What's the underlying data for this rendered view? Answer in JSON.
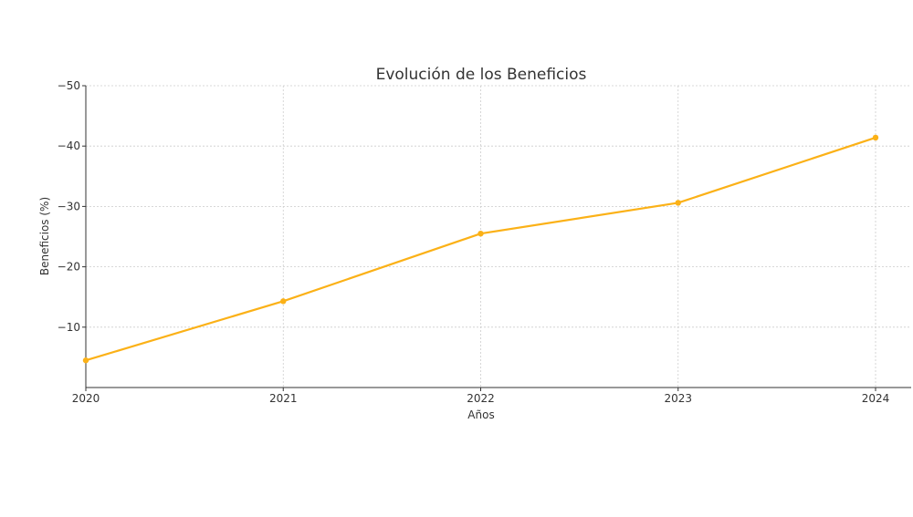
{
  "chart_data": {
    "type": "line",
    "title": "Evolución de los Beneficios",
    "xlabel": "Años",
    "ylabel": "Beneficios (%)",
    "x": [
      2020,
      2021,
      2022,
      2023,
      2024
    ],
    "x_tick_labels": [
      "2020",
      "2021",
      "2022",
      "2023",
      "2024"
    ],
    "y_ticks": [
      -10,
      -20,
      -30,
      -40,
      -50
    ],
    "y_tick_labels": [
      "−10",
      "−20",
      "−30",
      "−40",
      "−50"
    ],
    "ylim": [
      0,
      -50
    ],
    "y_axis_inverted": true,
    "grid": true,
    "series": [
      {
        "name": "Beneficios",
        "values": [
          -4.5,
          -14.3,
          -25.5,
          -30.6,
          -41.4
        ],
        "color": "#FBB117"
      }
    ]
  }
}
